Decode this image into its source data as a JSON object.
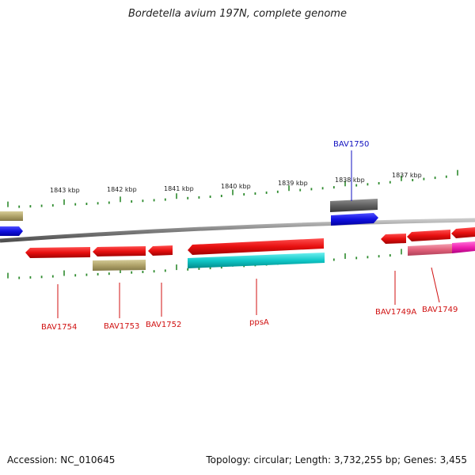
{
  "title": "Bordetella avium 197N, complete genome",
  "footer": {
    "accession": "Accession: NC_010645",
    "summary": "Topology: circular; Length: 3,732,255 bp; Genes: 3,455"
  },
  "colors": {
    "backbone": "#8a8a8a",
    "tick": "#2e8b2e",
    "gene_red": "#e81010",
    "gene_olive": "#b0a36a",
    "gene_blue": "#1010e0",
    "gene_cyan": "#10c8c8",
    "gene_gray": "#606060",
    "gene_pink": "#e0607a",
    "gene_magenta": "#f020b0",
    "label_red": "#d01010",
    "label_blue": "#1010c0"
  },
  "ticks": [
    {
      "label": "1843 kbp"
    },
    {
      "label": "1842 kbp"
    },
    {
      "label": "1841 kbp"
    },
    {
      "label": "1840 kbp"
    },
    {
      "label": "1839 kbp"
    },
    {
      "label": "1838 kbp"
    },
    {
      "label": "1837 kbp"
    }
  ],
  "gene_labels": [
    {
      "name": "BAV1750",
      "color": "blue"
    },
    {
      "name": "BAV1754",
      "color": "red"
    },
    {
      "name": "BAV1753",
      "color": "red"
    },
    {
      "name": "BAV1752",
      "color": "red"
    },
    {
      "name": "ppsA",
      "color": "red"
    },
    {
      "name": "BAV1749A",
      "color": "red"
    },
    {
      "name": "BAV1749",
      "color": "red"
    }
  ]
}
